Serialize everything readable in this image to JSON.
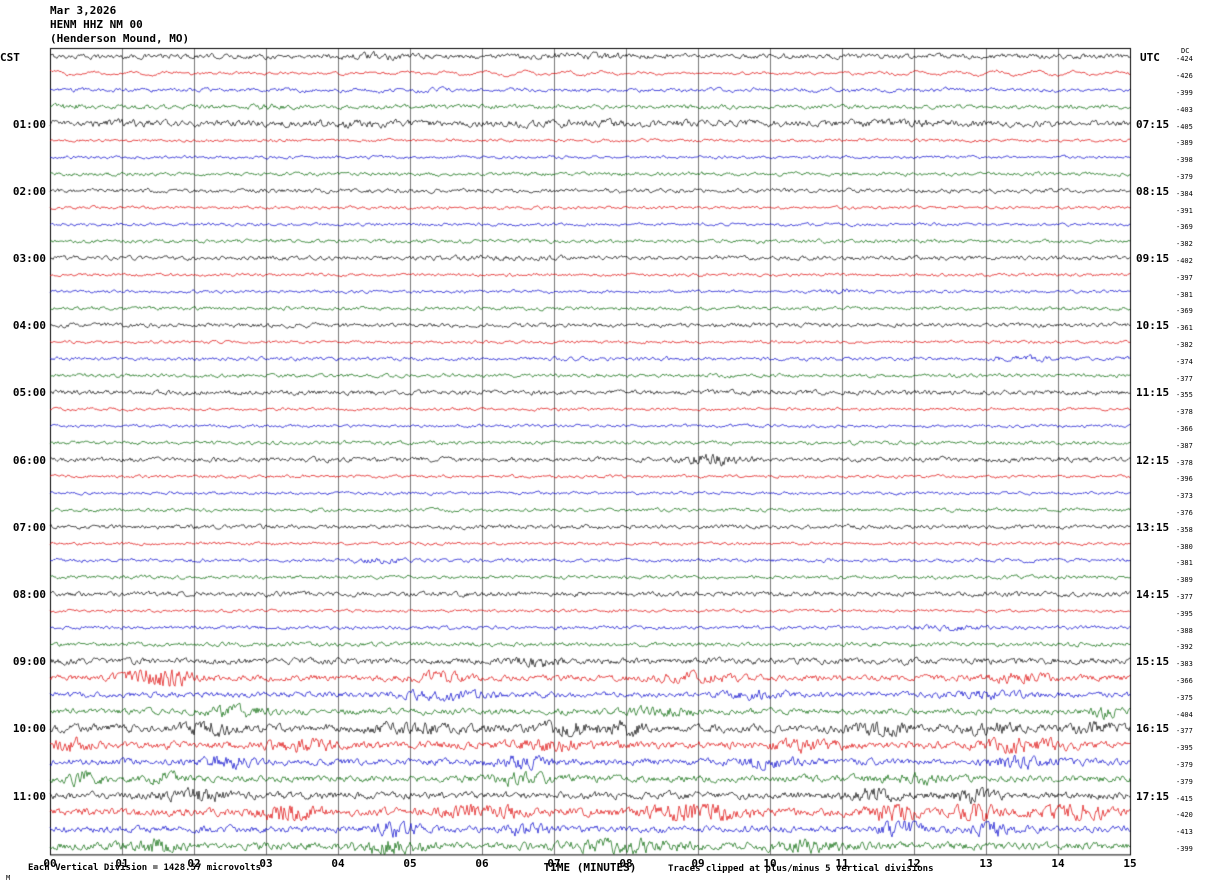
{
  "header": {
    "date": "Mar 3,2026",
    "station": "HENM HHZ NM 00",
    "location": "(Henderson Mound, MO)"
  },
  "axes": {
    "left_tz": "CST",
    "right_tz": "UTC",
    "dc_header": "DC",
    "x_ticks": [
      "00",
      "01",
      "02",
      "03",
      "04",
      "05",
      "06",
      "07",
      "08",
      "09",
      "10",
      "11",
      "12",
      "13",
      "14",
      "15"
    ],
    "left_hours": [
      "01:00",
      "02:00",
      "03:00",
      "04:00",
      "05:00",
      "06:00",
      "07:00",
      "08:00",
      "09:00",
      "10:00",
      "11:00"
    ],
    "right_hours": [
      "07:15",
      "08:15",
      "09:15",
      "10:15",
      "11:15",
      "12:15",
      "13:15",
      "14:15",
      "15:15",
      "16:15",
      "17:15"
    ]
  },
  "footer": {
    "scale_note": "Each Vertical Division = 1428.57 microvolts",
    "xlabel": "TIME (MINUTES)",
    "clip_note": "Traces clipped at plus/minus 5 vertical divisions",
    "mark": "M"
  },
  "chart_data": {
    "type": "line",
    "title": "HENM HHZ NM 00 (Henderson Mound, MO) helicorder, Mar 3,2026",
    "xlabel": "TIME (MINUTES)",
    "x_range_minutes": [
      0,
      15
    ],
    "minutes_per_row": 15,
    "rows_per_hour": 4,
    "clip_divisions": 5,
    "microvolts_per_division": 1428.57,
    "palette": {
      "k": "#000000",
      "r": "#dd0000",
      "b": "#0000cc",
      "g": "#006600"
    },
    "rows": [
      {
        "c": "k",
        "dc": "-424",
        "a": 0.8,
        "w": 0,
        "b": [
          [
            4.5,
            1.0,
            0.6
          ],
          [
            7.5,
            1.5,
            0.5
          ]
        ]
      },
      {
        "c": "r",
        "dc": "-426",
        "a": 0.45,
        "w": 1.0,
        "b": []
      },
      {
        "c": "b",
        "dc": "-399",
        "a": 0.6,
        "w": 0.5,
        "b": []
      },
      {
        "c": "g",
        "dc": "-403",
        "a": 0.7,
        "w": 0.25,
        "b": [
          [
            0.3,
            0.5,
            0.8
          ],
          [
            3.0,
            0.7,
            0.5
          ]
        ]
      },
      {
        "c": "k",
        "dc": "-405",
        "a": 1.0,
        "w": 0,
        "b": [
          [
            1.0,
            1.0,
            0.5
          ],
          [
            4.0,
            2.0,
            0.4
          ],
          [
            8.0,
            3.0,
            0.4
          ],
          [
            12.0,
            2.0,
            0.35
          ]
        ]
      },
      {
        "c": "r",
        "dc": "-389",
        "a": 0.5,
        "w": 0,
        "b": []
      },
      {
        "c": "b",
        "dc": "-398",
        "a": 0.5,
        "w": 0,
        "b": []
      },
      {
        "c": "g",
        "dc": "-379",
        "a": 0.6,
        "w": 0,
        "b": []
      },
      {
        "c": "k",
        "dc": "-384",
        "a": 0.7,
        "w": 0,
        "b": []
      },
      {
        "c": "r",
        "dc": "-391",
        "a": 0.5,
        "w": 0,
        "b": []
      },
      {
        "c": "b",
        "dc": "-369",
        "a": 0.5,
        "w": 0,
        "b": []
      },
      {
        "c": "g",
        "dc": "-382",
        "a": 0.6,
        "w": 0,
        "b": []
      },
      {
        "c": "k",
        "dc": "-402",
        "a": 0.7,
        "w": 0,
        "b": [
          [
            6.0,
            2.0,
            0.3
          ]
        ]
      },
      {
        "c": "r",
        "dc": "-397",
        "a": 0.5,
        "w": 0,
        "b": []
      },
      {
        "c": "b",
        "dc": "-381",
        "a": 0.5,
        "w": 0,
        "b": [
          [
            11.0,
            0.6,
            0.8
          ]
        ]
      },
      {
        "c": "g",
        "dc": "-369",
        "a": 0.6,
        "w": 0,
        "b": []
      },
      {
        "c": "k",
        "dc": "-361",
        "a": 0.7,
        "w": 0,
        "b": []
      },
      {
        "c": "r",
        "dc": "-382",
        "a": 0.5,
        "w": 0,
        "b": []
      },
      {
        "c": "b",
        "dc": "-374",
        "a": 0.6,
        "w": 0,
        "b": [
          [
            13.5,
            0.8,
            0.9
          ]
        ]
      },
      {
        "c": "g",
        "dc": "-377",
        "a": 0.6,
        "w": 0,
        "b": []
      },
      {
        "c": "k",
        "dc": "-355",
        "a": 0.8,
        "w": 0,
        "b": []
      },
      {
        "c": "r",
        "dc": "-378",
        "a": 0.5,
        "w": 0,
        "b": []
      },
      {
        "c": "b",
        "dc": "-366",
        "a": 0.5,
        "w": 0,
        "b": []
      },
      {
        "c": "g",
        "dc": "-387",
        "a": 0.6,
        "w": 0,
        "b": []
      },
      {
        "c": "k",
        "dc": "-378",
        "a": 0.8,
        "w": 0,
        "b": [
          [
            9.2,
            0.8,
            2.2
          ]
        ]
      },
      {
        "c": "r",
        "dc": "-396",
        "a": 0.5,
        "w": 0,
        "b": []
      },
      {
        "c": "b",
        "dc": "-373",
        "a": 0.5,
        "w": 0,
        "b": []
      },
      {
        "c": "g",
        "dc": "-376",
        "a": 0.6,
        "w": 0,
        "b": []
      },
      {
        "c": "k",
        "dc": "-358",
        "a": 0.7,
        "w": 0,
        "b": []
      },
      {
        "c": "r",
        "dc": "-380",
        "a": 0.5,
        "w": 0,
        "b": []
      },
      {
        "c": "b",
        "dc": "-381",
        "a": 0.6,
        "w": 0,
        "b": [
          [
            4.6,
            0.6,
            0.9
          ]
        ]
      },
      {
        "c": "g",
        "dc": "-389",
        "a": 0.6,
        "w": 0,
        "b": []
      },
      {
        "c": "k",
        "dc": "-377",
        "a": 0.8,
        "w": 0,
        "b": []
      },
      {
        "c": "r",
        "dc": "-395",
        "a": 0.5,
        "w": 0,
        "b": []
      },
      {
        "c": "b",
        "dc": "-388",
        "a": 0.6,
        "w": 0,
        "b": [
          [
            12.5,
            1.0,
            0.9
          ]
        ]
      },
      {
        "c": "g",
        "dc": "-392",
        "a": 0.7,
        "w": 0,
        "b": []
      },
      {
        "c": "k",
        "dc": "-383",
        "a": 1.0,
        "w": 0,
        "b": [
          [
            6.8,
            0.7,
            1.2
          ]
        ]
      },
      {
        "c": "r",
        "dc": "-366",
        "a": 1.0,
        "w": 0,
        "b": [
          [
            1.5,
            0.9,
            3.2
          ],
          [
            5.4,
            0.8,
            1.2
          ],
          [
            9.0,
            1.0,
            1.0
          ],
          [
            13.5,
            0.8,
            1.1
          ]
        ]
      },
      {
        "c": "b",
        "dc": "-375",
        "a": 0.9,
        "w": 0,
        "b": [
          [
            5.5,
            1.2,
            1.3
          ],
          [
            9.8,
            0.8,
            1.1
          ],
          [
            13.0,
            1.0,
            1.1
          ]
        ]
      },
      {
        "c": "g",
        "dc": "-404",
        "a": 1.0,
        "w": 0,
        "b": [
          [
            2.6,
            0.8,
            1.5
          ],
          [
            8.5,
            0.8,
            1.2
          ],
          [
            14.7,
            0.4,
            1.5
          ]
        ]
      },
      {
        "c": "k",
        "dc": "-377",
        "a": 1.3,
        "w": 0,
        "b": [
          [
            2.2,
            0.6,
            1.6
          ],
          [
            5.0,
            1.0,
            1.2
          ],
          [
            7.2,
            0.8,
            1.5
          ],
          [
            8.0,
            0.6,
            1.3
          ],
          [
            11.5,
            0.7,
            1.5
          ],
          [
            13.0,
            0.8,
            1.3
          ],
          [
            14.5,
            0.5,
            1.5
          ]
        ]
      },
      {
        "c": "r",
        "dc": "-395",
        "a": 1.2,
        "w": 0,
        "b": [
          [
            0.3,
            0.5,
            1.5
          ],
          [
            3.5,
            1.0,
            1.2
          ],
          [
            7.0,
            1.0,
            1.1
          ],
          [
            10.5,
            1.0,
            1.2
          ],
          [
            13.5,
            1.0,
            1.4
          ]
        ]
      },
      {
        "c": "b",
        "dc": "-379",
        "a": 1.1,
        "w": 0,
        "b": [
          [
            2.5,
            0.7,
            1.5
          ],
          [
            6.5,
            0.8,
            1.3
          ],
          [
            10.0,
            0.8,
            1.2
          ],
          [
            13.5,
            0.8,
            1.5
          ]
        ]
      },
      {
        "c": "g",
        "dc": "-379",
        "a": 1.1,
        "w": 0,
        "b": [
          [
            0.5,
            0.4,
            2.0
          ],
          [
            1.6,
            0.5,
            1.5
          ],
          [
            6.5,
            1.0,
            1.1
          ],
          [
            12.0,
            1.0,
            1.1
          ]
        ]
      },
      {
        "c": "k",
        "dc": "-415",
        "a": 1.2,
        "w": 0,
        "b": [
          [
            2.0,
            0.8,
            1.5
          ],
          [
            11.5,
            0.6,
            1.8
          ],
          [
            12.8,
            0.6,
            1.5
          ]
        ]
      },
      {
        "c": "r",
        "dc": "-420",
        "a": 1.3,
        "w": 0,
        "b": [
          [
            3.3,
            0.7,
            2.1
          ],
          [
            6.0,
            1.0,
            1.4
          ],
          [
            9.0,
            1.2,
            1.9
          ],
          [
            11.7,
            0.6,
            2.3
          ],
          [
            12.9,
            0.6,
            2.1
          ],
          [
            14.2,
            0.8,
            1.9
          ]
        ]
      },
      {
        "c": "b",
        "dc": "-413",
        "a": 1.1,
        "w": 0,
        "b": [
          [
            4.8,
            0.6,
            2.0
          ],
          [
            6.6,
            0.5,
            1.5
          ],
          [
            11.8,
            0.5,
            2.2
          ],
          [
            13.1,
            0.6,
            1.8
          ]
        ]
      },
      {
        "c": "g",
        "dc": "-399",
        "a": 1.2,
        "w": 0,
        "b": [
          [
            1.5,
            0.6,
            1.5
          ],
          [
            4.7,
            0.8,
            1.8
          ],
          [
            8.0,
            1.5,
            1.3
          ],
          [
            10.5,
            1.0,
            1.1
          ]
        ]
      }
    ]
  }
}
